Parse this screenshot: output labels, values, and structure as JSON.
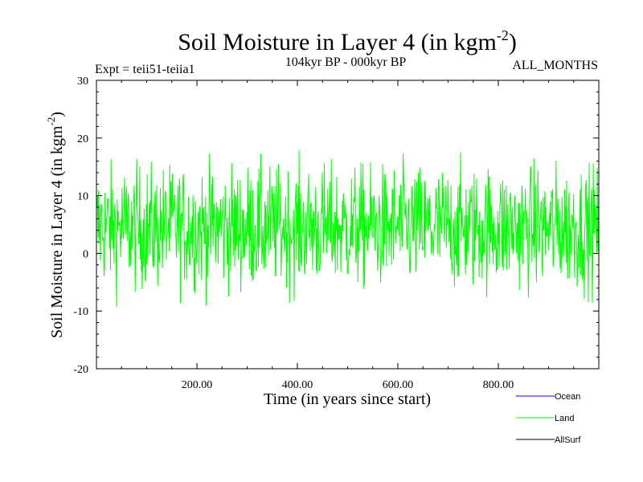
{
  "chart_data": {
    "type": "line",
    "title": "Soil Moisture in Layer 4 (in kgm",
    "title_sup": "-2",
    "title_close": ")",
    "subtitle": "104kyr BP - 000kyr BP",
    "expt_label": "Expt = teii51-teiia1",
    "months_label": "ALL_MONTHS",
    "xlabel": "Time (in years since start)",
    "ylabel": "Soil Moisture in Layer 4 (in kgm",
    "ylabel_sup": "-2",
    "ylabel_close": ")",
    "xlim": [
      0,
      1000
    ],
    "ylim": [
      -20,
      30
    ],
    "x_ticks": [
      200,
      400,
      600,
      800
    ],
    "x_tick_labels": [
      "200.00",
      "400.00",
      "600.00",
      "800.00"
    ],
    "y_ticks": [
      -20,
      -10,
      0,
      10,
      20,
      30
    ],
    "y_tick_labels": [
      "-20",
      "-10",
      "0",
      "10",
      "20",
      "30"
    ],
    "grid": false,
    "legend_position": "below-right",
    "series": [
      {
        "name": "Ocean",
        "color": "#0000ff",
        "values": []
      },
      {
        "name": "Land",
        "color": "#00ff00",
        "noise": {
          "n": 1000,
          "mean": 4.5,
          "std": 5.2,
          "min": -12.5,
          "max": 21.3
        }
      },
      {
        "name": "AllSurf",
        "color": "#000000",
        "values": []
      }
    ]
  }
}
